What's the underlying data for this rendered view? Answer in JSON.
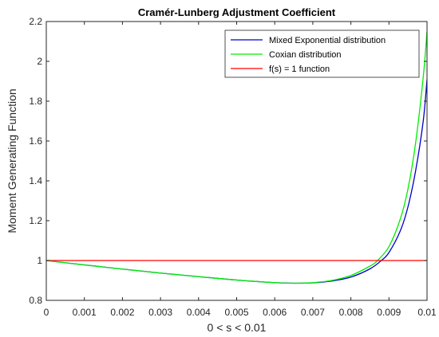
{
  "chart_data": {
    "type": "line",
    "title": "Cramér-Lunberg Adjustment Coefficient",
    "xlabel": "0 < s < 0.01",
    "ylabel": "Moment Generating Function",
    "xlim": [
      0,
      0.01
    ],
    "ylim": [
      0.8,
      2.2
    ],
    "xticks": [
      0,
      0.001,
      0.002,
      0.003,
      0.004,
      0.005,
      0.006,
      0.007,
      0.008,
      0.009,
      0.01
    ],
    "xtick_labels": [
      "0",
      "0.001",
      "0.002",
      "0.003",
      "0.004",
      "0.005",
      "0.006",
      "0.007",
      "0.008",
      "0.009",
      "0.01"
    ],
    "yticks": [
      0.8,
      1,
      1.2,
      1.4,
      1.6,
      1.8,
      2,
      2.2
    ],
    "ytick_labels": [
      "0.8",
      "1",
      "1.2",
      "1.4",
      "1.6",
      "1.8",
      "2",
      "2.2"
    ],
    "grid": false,
    "legend_position": "top-right",
    "series": [
      {
        "name": "Mixed Exponential distribution",
        "color": "#0000cc",
        "x": [
          0,
          0.001,
          0.002,
          0.003,
          0.004,
          0.005,
          0.006,
          0.0065,
          0.007,
          0.0075,
          0.008,
          0.0085,
          0.0088,
          0.009,
          0.0093,
          0.0095,
          0.0097,
          0.0099,
          0.01
        ],
        "y": [
          1.0,
          0.978,
          0.957,
          0.937,
          0.919,
          0.902,
          0.889,
          0.886,
          0.888,
          0.897,
          0.917,
          0.958,
          1.0,
          1.04,
          1.15,
          1.27,
          1.45,
          1.7,
          1.91
        ]
      },
      {
        "name": "Coxian distribution",
        "color": "#00ee00",
        "x": [
          0,
          0.001,
          0.002,
          0.003,
          0.004,
          0.005,
          0.006,
          0.0065,
          0.007,
          0.0075,
          0.008,
          0.0085,
          0.0087,
          0.009,
          0.0093,
          0.0095,
          0.0097,
          0.0099,
          0.01
        ],
        "y": [
          1.0,
          0.978,
          0.957,
          0.937,
          0.919,
          0.902,
          0.889,
          0.886,
          0.889,
          0.9,
          0.925,
          0.972,
          1.0,
          1.07,
          1.21,
          1.36,
          1.59,
          1.92,
          2.15
        ]
      },
      {
        "name": "f(s) = 1 function",
        "color": "#ff0000",
        "x": [
          0,
          0.01
        ],
        "y": [
          1,
          1
        ]
      }
    ]
  }
}
